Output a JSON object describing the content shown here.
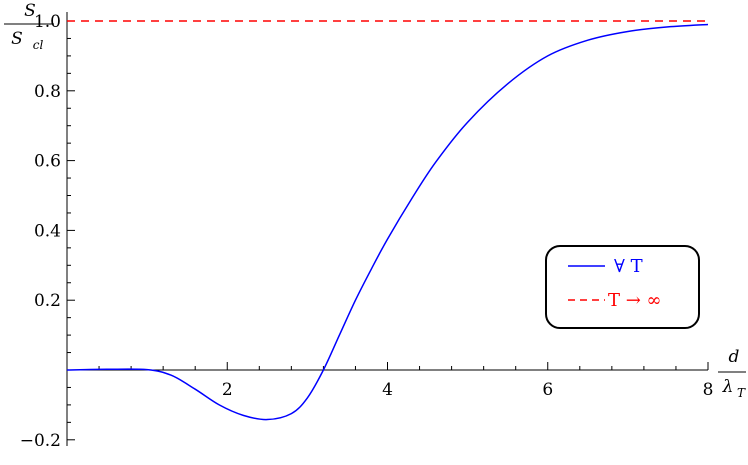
{
  "chart_data": {
    "type": "line",
    "ylabel_num": "S",
    "ylabel_den_main": "S",
    "ylabel_den_sub": "cl",
    "xlabel_num": "d",
    "xlabel_den_main": "λ",
    "xlabel_den_sub": "T",
    "xlim": [
      0,
      8
    ],
    "ylim": [
      -0.2,
      1.0
    ],
    "x_ticks": [
      2,
      4,
      6,
      8
    ],
    "x_tick_labels": [
      "2",
      "4",
      "6",
      "8"
    ],
    "y_ticks": [
      -0.2,
      0.2,
      0.4,
      0.6,
      0.8,
      1.0
    ],
    "y_tick_labels": [
      "−0.2",
      "0.2",
      "0.4",
      "0.6",
      "0.8",
      "1.0"
    ],
    "grid": false,
    "legend_position": "right",
    "series": [
      {
        "name": "∀ T",
        "color": "#0000ff",
        "style": "solid",
        "x": [
          0,
          0.5,
          1.0,
          1.3,
          1.6,
          1.9,
          2.2,
          2.5,
          2.8,
          3.0,
          3.2,
          3.4,
          3.6,
          3.8,
          4.0,
          4.3,
          4.6,
          5.0,
          5.5,
          6.0,
          6.5,
          7.0,
          7.5,
          8.0
        ],
        "y": [
          0.0,
          0.002,
          0.001,
          -0.015,
          -0.055,
          -0.1,
          -0.13,
          -0.142,
          -0.125,
          -0.08,
          0.0,
          0.1,
          0.2,
          0.29,
          0.375,
          0.49,
          0.595,
          0.71,
          0.82,
          0.9,
          0.945,
          0.97,
          0.983,
          0.99
        ]
      },
      {
        "name": "T → ∞",
        "color": "#ff0000",
        "style": "dashed",
        "x": [
          0,
          8
        ],
        "y": [
          1.0,
          1.0
        ]
      }
    ],
    "legend": {
      "entries": [
        {
          "label": "∀ T",
          "color": "#0000ff",
          "style": "solid"
        },
        {
          "label": "T → ∞",
          "color": "#ff0000",
          "style": "dashed"
        }
      ]
    }
  }
}
